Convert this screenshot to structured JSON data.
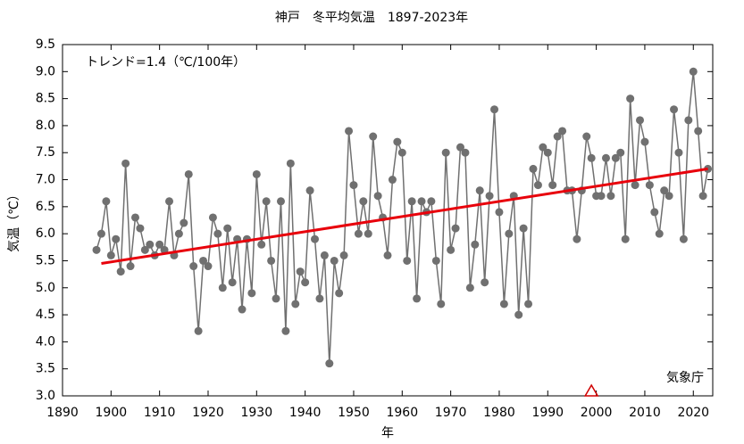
{
  "chart_data": {
    "type": "line",
    "title": "神戸　冬平均気温　1897-2023年",
    "xlabel": "年",
    "ylabel": "気温（℃）",
    "annotation": "トレンド=1.4（℃/100年）",
    "source": "気象庁",
    "xlim": [
      1890,
      2024
    ],
    "ylim": [
      3.0,
      9.5
    ],
    "xticks": [
      1890,
      1900,
      1910,
      1920,
      1930,
      1940,
      1950,
      1960,
      1970,
      1980,
      1990,
      2000,
      2010,
      2020
    ],
    "yticks": [
      {
        "value": 3.0,
        "label": "3.0"
      },
      {
        "value": 3.5,
        "label": "3.5"
      },
      {
        "value": 4.0,
        "label": "4.0"
      },
      {
        "value": 4.5,
        "label": "4.5"
      },
      {
        "value": 5.0,
        "label": "5.0"
      },
      {
        "value": 5.5,
        "label": "5.5"
      },
      {
        "value": 6.0,
        "label": "6.0"
      },
      {
        "value": 6.5,
        "label": "6.5"
      },
      {
        "value": 7.0,
        "label": "7.0"
      },
      {
        "value": 7.5,
        "label": "7.5"
      },
      {
        "value": 8.0,
        "label": "8.0"
      },
      {
        "value": 8.5,
        "label": "8.5"
      },
      {
        "value": 9.0,
        "label": "9.0"
      },
      {
        "value": 9.5,
        "label": "9.5"
      }
    ],
    "series": [
      {
        "color": "#707070",
        "x": [
          1897,
          1898,
          1899,
          1900,
          1901,
          1902,
          1903,
          1904,
          1905,
          1906,
          1907,
          1908,
          1909,
          1910,
          1911,
          1912,
          1913,
          1914,
          1915,
          1916,
          1917,
          1918,
          1919,
          1920,
          1921,
          1922,
          1923,
          1924,
          1925,
          1926,
          1927,
          1928,
          1929,
          1930,
          1931,
          1932,
          1933,
          1934,
          1935,
          1936,
          1937,
          1938,
          1939,
          1940,
          1941,
          1942,
          1943,
          1944,
          1945,
          1946,
          1947,
          1948,
          1949,
          1950,
          1951,
          1952,
          1953,
          1954,
          1955,
          1956,
          1957,
          1958,
          1959,
          1960,
          1961,
          1962,
          1963,
          1964,
          1965,
          1966,
          1967,
          1968,
          1969,
          1970,
          1971,
          1972,
          1973,
          1974,
          1975,
          1976,
          1977,
          1978,
          1979,
          1980,
          1981,
          1982,
          1983,
          1984,
          1985,
          1986,
          1987,
          1988,
          1989,
          1990,
          1991,
          1992,
          1993,
          1994,
          1995,
          1996,
          1997,
          1998,
          1999,
          2000,
          2001,
          2002,
          2003,
          2004,
          2005,
          2006,
          2007,
          2008,
          2009,
          2010,
          2011,
          2012,
          2013,
          2014,
          2015,
          2016,
          2017,
          2018,
          2019,
          2020,
          2021,
          2022,
          2023
        ],
        "values": [
          5.7,
          6.0,
          6.6,
          5.6,
          5.9,
          5.3,
          7.3,
          5.4,
          6.3,
          6.1,
          5.7,
          5.8,
          5.6,
          5.8,
          5.7,
          6.6,
          5.6,
          6.0,
          6.2,
          7.1,
          5.4,
          4.2,
          5.5,
          5.4,
          6.3,
          6.0,
          5.0,
          6.1,
          5.1,
          5.9,
          4.6,
          5.9,
          4.9,
          7.1,
          5.8,
          6.6,
          5.5,
          4.8,
          6.6,
          4.2,
          7.3,
          4.7,
          5.3,
          5.1,
          6.8,
          5.9,
          4.8,
          5.6,
          3.6,
          5.5,
          4.9,
          5.6,
          7.9,
          6.9,
          6.0,
          6.6,
          6.0,
          7.8,
          6.7,
          6.3,
          5.6,
          7.0,
          7.7,
          7.5,
          5.5,
          6.6,
          4.8,
          6.6,
          6.4,
          6.6,
          5.5,
          4.7,
          7.5,
          5.7,
          6.1,
          7.6,
          7.5,
          5.0,
          5.8,
          6.8,
          5.1,
          6.7,
          8.3,
          6.4,
          4.7,
          6.0,
          6.7,
          4.5,
          6.1,
          4.7,
          7.2,
          6.9,
          7.6,
          7.5,
          6.9,
          7.8,
          7.9,
          6.8,
          6.8,
          5.9,
          6.8,
          7.8,
          7.4,
          6.7,
          6.7,
          7.4,
          6.7,
          7.4,
          7.5,
          5.9,
          8.5,
          6.9,
          8.1,
          7.7,
          6.9,
          6.4,
          6.0,
          6.8,
          6.7,
          8.3,
          7.5,
          5.9,
          8.1,
          9.0,
          7.9,
          6.7,
          7.2
        ]
      }
    ],
    "trend": {
      "color": "#e8000b",
      "x": [
        1898,
        2023
      ],
      "values": [
        5.45,
        7.2
      ]
    },
    "marker_x": 1999,
    "marker_color": "#d00000"
  }
}
